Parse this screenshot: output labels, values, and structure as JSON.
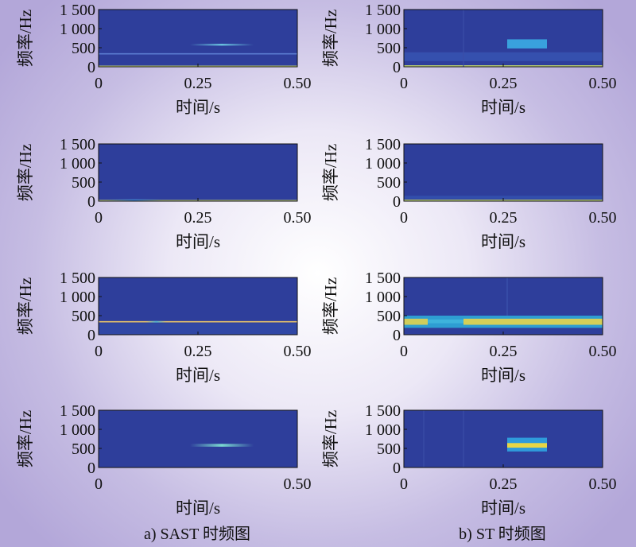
{
  "chart_data": [
    {
      "type": "heatmap",
      "panel": "SAST-1",
      "xlabel": "时间/s",
      "ylabel": "频率/Hz",
      "xlim": [
        0,
        0.5
      ],
      "ylim": [
        0,
        1500
      ],
      "xticks": [
        0,
        0.25,
        0.5
      ],
      "xtick_labels": [
        "0",
        "0.25",
        "0.50"
      ],
      "yticks": [
        0,
        500,
        1000,
        1500
      ],
      "ytick_labels": [
        "0",
        "500",
        "1 000",
        "1 500"
      ],
      "colors": {
        "background": "#2e3e9b"
      },
      "features": [
        {
          "kind": "band",
          "t": [
            0,
            0.5
          ],
          "f": [
            0,
            30
          ],
          "color": "#d8e86a"
        },
        {
          "kind": "line",
          "t": [
            0,
            0.5
          ],
          "f": 340,
          "color": "#5a7bd0"
        },
        {
          "kind": "blob",
          "t": [
            0.23,
            0.39
          ],
          "f": [
            555,
            600
          ],
          "color": "#6fd0e6"
        }
      ]
    },
    {
      "type": "heatmap",
      "panel": "ST-1",
      "xlabel": "时间/s",
      "ylabel": "频率/Hz",
      "xlim": [
        0,
        0.5
      ],
      "ylim": [
        0,
        1500
      ],
      "xticks": [
        0,
        0.25,
        0.5
      ],
      "xtick_labels": [
        "0",
        "0.25",
        "0.50"
      ],
      "yticks": [
        0,
        500,
        1000,
        1500
      ],
      "ytick_labels": [
        "0",
        "500",
        "1 000",
        "1 500"
      ],
      "colors": {
        "background": "#2e3e9b"
      },
      "features": [
        {
          "kind": "band",
          "t": [
            0,
            0.5
          ],
          "f": [
            0,
            40
          ],
          "color": "#cfe36c"
        },
        {
          "kind": "band",
          "t": [
            0,
            0.5
          ],
          "f": [
            150,
            380
          ],
          "color": "#3652b0"
        },
        {
          "kind": "block",
          "t": [
            0.26,
            0.36
          ],
          "f": [
            480,
            720
          ],
          "color": "#3aa6e0"
        },
        {
          "kind": "vline",
          "t": 0.15,
          "f": [
            0,
            1500
          ],
          "color": "#3a4ea8"
        }
      ]
    },
    {
      "type": "heatmap",
      "panel": "SAST-2",
      "xlabel": "时间/s",
      "ylabel": "频率/Hz",
      "xlim": [
        0,
        0.5
      ],
      "ylim": [
        0,
        1500
      ],
      "xticks": [
        0,
        0.25,
        0.5
      ],
      "xtick_labels": [
        "0",
        "0.25",
        "0.50"
      ],
      "yticks": [
        0,
        500,
        1000,
        1500
      ],
      "ytick_labels": [
        "0",
        "500",
        "1 000",
        "1 500"
      ],
      "colors": {
        "background": "#2e3e9b"
      },
      "features": [
        {
          "kind": "band",
          "t": [
            0,
            0.5
          ],
          "f": [
            0,
            30
          ],
          "color": "#d8e86a"
        },
        {
          "kind": "blob",
          "t": [
            0.02,
            0.16
          ],
          "f": [
            20,
            50
          ],
          "color": "#3d7cc8"
        }
      ]
    },
    {
      "type": "heatmap",
      "panel": "ST-2",
      "xlabel": "时间/s",
      "ylabel": "频率/Hz",
      "xlim": [
        0,
        0.5
      ],
      "ylim": [
        0,
        1500
      ],
      "xticks": [
        0,
        0.25,
        0.5
      ],
      "xtick_labels": [
        "0",
        "0.25",
        "0.50"
      ],
      "yticks": [
        0,
        500,
        1000,
        1500
      ],
      "ytick_labels": [
        "0",
        "500",
        "1 000",
        "1 500"
      ],
      "colors": {
        "background": "#2e3e9b"
      },
      "features": [
        {
          "kind": "band",
          "t": [
            0,
            0.5
          ],
          "f": [
            0,
            40
          ],
          "color": "#c6de70"
        },
        {
          "kind": "band",
          "t": [
            0,
            0.5
          ],
          "f": [
            60,
            140
          ],
          "color": "#3450ae"
        }
      ]
    },
    {
      "type": "heatmap",
      "panel": "SAST-3",
      "xlabel": "时间/s",
      "ylabel": "频率/Hz",
      "xlim": [
        0,
        0.5
      ],
      "ylim": [
        0,
        1500
      ],
      "xticks": [
        0,
        0.25,
        0.5
      ],
      "xtick_labels": [
        "0",
        "0.25",
        "0.50"
      ],
      "yticks": [
        0,
        500,
        1000,
        1500
      ],
      "ytick_labels": [
        "0",
        "500",
        "1 000",
        "1 500"
      ],
      "colors": {
        "background": "#2e3e9b"
      },
      "features": [
        {
          "kind": "band",
          "t": [
            0,
            0.5
          ],
          "f": [
            0,
            300
          ],
          "color": "#3148a6"
        },
        {
          "kind": "line",
          "t": [
            0,
            0.5
          ],
          "f": 340,
          "color": "#e6c46a"
        },
        {
          "kind": "blob",
          "t": [
            0.12,
            0.17
          ],
          "f": [
            320,
            360
          ],
          "color": "#4fb0cf"
        }
      ]
    },
    {
      "type": "heatmap",
      "panel": "ST-3",
      "xlabel": "时间/s",
      "ylabel": "频率/Hz",
      "xlim": [
        0,
        0.5
      ],
      "ylim": [
        0,
        1500
      ],
      "xticks": [
        0,
        0.25,
        0.5
      ],
      "xtick_labels": [
        "0",
        "0.25",
        "0.50"
      ],
      "yticks": [
        0,
        500,
        1000,
        1500
      ],
      "ytick_labels": [
        "0",
        "500",
        "1 000",
        "1 500"
      ],
      "colors": {
        "background": "#2e3e9b"
      },
      "features": [
        {
          "kind": "band",
          "t": [
            0,
            0.5
          ],
          "f": [
            180,
            500
          ],
          "color": "#2fa8d8"
        },
        {
          "kind": "band",
          "t": [
            0.15,
            0.5
          ],
          "f": [
            260,
            420
          ],
          "color": "#e8d44a"
        },
        {
          "kind": "band",
          "t": [
            0,
            0.06
          ],
          "f": [
            260,
            420
          ],
          "color": "#e2d24e"
        },
        {
          "kind": "block",
          "t": [
            0.06,
            0.15
          ],
          "f": [
            300,
            400
          ],
          "color": "#3fb4dc"
        },
        {
          "kind": "vline",
          "t": 0.26,
          "f": [
            500,
            1500
          ],
          "color": "#3c55ad"
        }
      ]
    },
    {
      "type": "heatmap",
      "panel": "SAST-4",
      "xlabel": "时间/s",
      "ylabel": "频率/Hz",
      "xlim": [
        0,
        0.5
      ],
      "ylim": [
        0,
        1500
      ],
      "xticks": [
        0,
        0.5
      ],
      "xtick_labels": [
        "0",
        "0.50"
      ],
      "yticks": [
        0,
        500,
        1000,
        1500
      ],
      "ytick_labels": [
        "0",
        "500",
        "1 000",
        "1 500"
      ],
      "colors": {
        "background": "#2e3e9b"
      },
      "features": [
        {
          "kind": "blob",
          "t": [
            0.23,
            0.39
          ],
          "f": [
            545,
            620
          ],
          "color": "#7ad9d0"
        }
      ]
    },
    {
      "type": "heatmap",
      "panel": "ST-4",
      "xlabel": "时间/s",
      "ylabel": "频率/Hz",
      "xlim": [
        0,
        0.5
      ],
      "ylim": [
        0,
        1500
      ],
      "xticks": [
        0,
        0.25,
        0.5
      ],
      "xtick_labels": [
        "0",
        "0.25",
        "0.50"
      ],
      "yticks": [
        0,
        500,
        1000,
        1500
      ],
      "ytick_labels": [
        "0",
        "500",
        "1 000",
        "1 500"
      ],
      "colors": {
        "background": "#2e3e9b"
      },
      "features": [
        {
          "kind": "block",
          "t": [
            0.26,
            0.36
          ],
          "f": [
            420,
            780
          ],
          "color": "#2fa0de"
        },
        {
          "kind": "block",
          "t": [
            0.26,
            0.36
          ],
          "f": [
            520,
            640
          ],
          "color": "#f2d93c"
        },
        {
          "kind": "vline",
          "t": 0.05,
          "f": [
            0,
            1500
          ],
          "color": "#3a4ea8"
        },
        {
          "kind": "vline",
          "t": 0.15,
          "f": [
            0,
            1500
          ],
          "color": "#3a4ea8"
        }
      ]
    }
  ],
  "captions": {
    "left": "a) SAST 时频图",
    "right": "b) ST 时频图"
  }
}
